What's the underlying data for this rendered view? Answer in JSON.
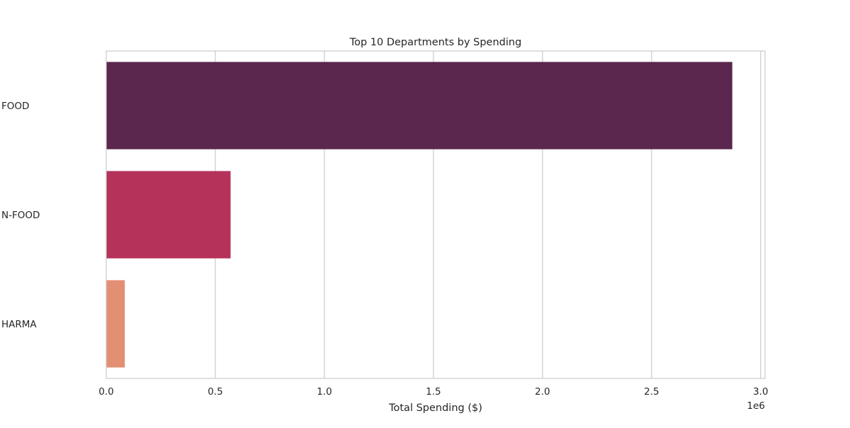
{
  "chart_data": {
    "type": "bar",
    "orientation": "horizontal",
    "title": "Top 10 Departments by Spending",
    "xlabel": "Total Spending ($)",
    "ylabel": "",
    "x_offset_text": "1e6",
    "xlim": [
      0,
      3.02
    ],
    "xticks": [
      0,
      0.5,
      1.0,
      1.5,
      2.0,
      2.5,
      3.0
    ],
    "xtick_labels": [
      "0.0",
      "0.5",
      "1.0",
      "1.5",
      "2.0",
      "2.5",
      "3.0"
    ],
    "categories": [
      "FOOD",
      "N-FOOD",
      "HARMA"
    ],
    "values": [
      2.87,
      0.57,
      0.085
    ],
    "colors": [
      "#5b274e",
      "#b5325a",
      "#e38f73"
    ],
    "grid": "vertical",
    "legend": "none"
  }
}
